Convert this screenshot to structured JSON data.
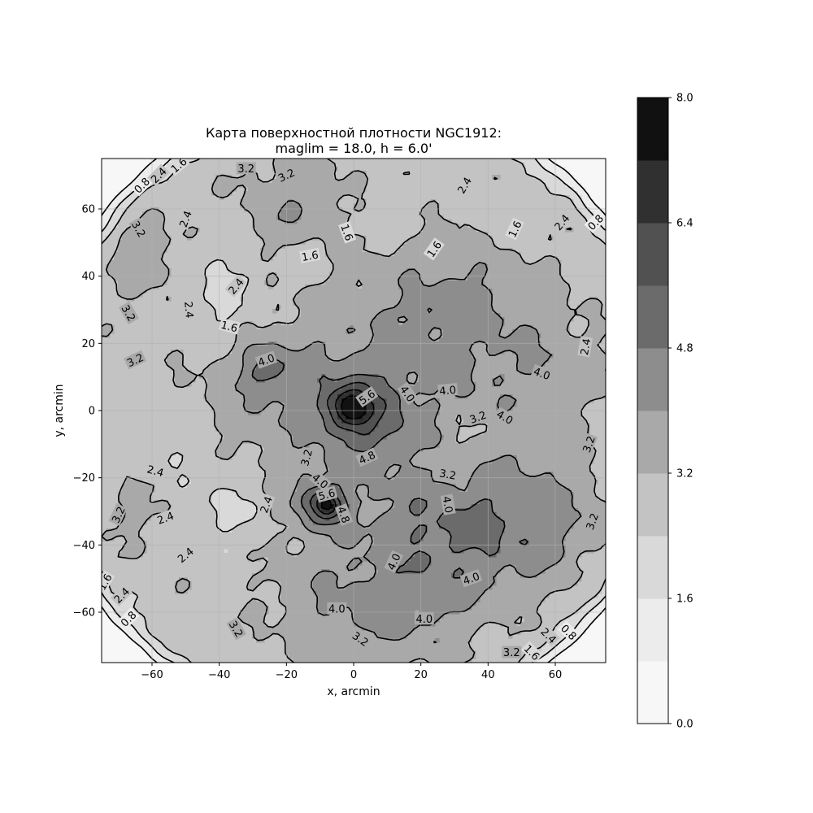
{
  "chart_data": {
    "type": "contour",
    "title_lines": [
      "Карта поверхностной плотности NGC1912:",
      "maglim = 18.0, h = 6.0'"
    ],
    "xlabel": "x, arcmin",
    "ylabel": "y, arcmin",
    "xlim": [
      -75,
      75
    ],
    "ylim": [
      -75,
      75
    ],
    "xticks": [
      -60,
      -40,
      -20,
      0,
      20,
      40,
      60
    ],
    "yticks": [
      -60,
      -40,
      -20,
      0,
      20,
      40,
      60
    ],
    "grid": true,
    "colormap": "Greys",
    "levels": [
      0.0,
      0.8,
      1.6,
      2.4,
      3.2,
      4.0,
      4.8,
      5.6,
      6.4,
      7.2,
      8.0
    ],
    "level_colors": [
      "#f7f7f7",
      "#ececec",
      "#d9d9d9",
      "#c3c3c3",
      "#a9a9a9",
      "#8d8d8d",
      "#6b6b6b",
      "#515151",
      "#303030",
      "#111111"
    ],
    "colorbar": {
      "min": 0.0,
      "max": 8.0,
      "ticks": [
        0.0,
        1.6,
        3.2,
        4.8,
        6.4,
        8.0
      ],
      "tick_labels": [
        "0.0",
        "1.6",
        "3.2",
        "4.8",
        "6.4",
        "8.0"
      ]
    },
    "contour_labels": [
      {
        "text": "0.8",
        "x": -63,
        "y": 67,
        "rot": -45
      },
      {
        "text": "2.4",
        "x": -58,
        "y": 70,
        "rot": -45
      },
      {
        "text": "1.6",
        "x": -52,
        "y": 73,
        "rot": -40
      },
      {
        "text": "3.2",
        "x": -32,
        "y": 72,
        "rot": 0
      },
      {
        "text": "3.2",
        "x": -20,
        "y": 70,
        "rot": -25
      },
      {
        "text": "2.4",
        "x": -50,
        "y": 57,
        "rot": -70
      },
      {
        "text": "3.2",
        "x": -64,
        "y": 54,
        "rot": 60
      },
      {
        "text": "2.4",
        "x": 33,
        "y": 67,
        "rot": -60
      },
      {
        "text": "1.6",
        "x": -2,
        "y": 53,
        "rot": 70
      },
      {
        "text": "1.6",
        "x": -13,
        "y": 46,
        "rot": -10
      },
      {
        "text": "1.6",
        "x": 24,
        "y": 48,
        "rot": -55
      },
      {
        "text": "1.6",
        "x": 48,
        "y": 54,
        "rot": -65
      },
      {
        "text": "2.4",
        "x": 62,
        "y": 56,
        "rot": -50
      },
      {
        "text": "0.8",
        "x": 72,
        "y": 56,
        "rot": -45
      },
      {
        "text": "2.4",
        "x": -35,
        "y": 37,
        "rot": -50
      },
      {
        "text": "3.2",
        "x": -67,
        "y": 29,
        "rot": 60
      },
      {
        "text": "2.4",
        "x": -49,
        "y": 30,
        "rot": 85
      },
      {
        "text": "1.6",
        "x": -37,
        "y": 25,
        "rot": 15
      },
      {
        "text": "3.2",
        "x": -65,
        "y": 15,
        "rot": -25
      },
      {
        "text": "4.0",
        "x": -26,
        "y": 15,
        "rot": -20
      },
      {
        "text": "2.4",
        "x": 69,
        "y": 19,
        "rot": -80
      },
      {
        "text": "4.0",
        "x": 56,
        "y": 11,
        "rot": 20
      },
      {
        "text": "5.6",
        "x": 4,
        "y": 4,
        "rot": -35
      },
      {
        "text": "4.0",
        "x": 16,
        "y": 5,
        "rot": 55
      },
      {
        "text": "4.0",
        "x": 28,
        "y": 6,
        "rot": -5
      },
      {
        "text": "3.2",
        "x": 37,
        "y": -2,
        "rot": -20
      },
      {
        "text": "4.0",
        "x": 45,
        "y": -2,
        "rot": 30
      },
      {
        "text": "3.2",
        "x": 70,
        "y": -10,
        "rot": -70
      },
      {
        "text": "3.2",
        "x": -14,
        "y": -14,
        "rot": -75
      },
      {
        "text": "4.8",
        "x": 4,
        "y": -14,
        "rot": -25
      },
      {
        "text": "2.4",
        "x": -59,
        "y": -18,
        "rot": 15
      },
      {
        "text": "3.2",
        "x": 28,
        "y": -19,
        "rot": 10
      },
      {
        "text": "4.0",
        "x": -10,
        "y": -21,
        "rot": 40
      },
      {
        "text": "5.6",
        "x": -8,
        "y": -25,
        "rot": -15
      },
      {
        "text": "2.4",
        "x": -26,
        "y": -28,
        "rot": -70
      },
      {
        "text": "4.0",
        "x": 28,
        "y": -28,
        "rot": 80
      },
      {
        "text": "4.8",
        "x": -3,
        "y": -31,
        "rot": 70
      },
      {
        "text": "3.2",
        "x": -70,
        "y": -31,
        "rot": -65
      },
      {
        "text": "2.4",
        "x": -56,
        "y": -32,
        "rot": -20
      },
      {
        "text": "3.2",
        "x": 71,
        "y": -33,
        "rot": -70
      },
      {
        "text": "2.4",
        "x": -50,
        "y": -43,
        "rot": -40
      },
      {
        "text": "4.0",
        "x": 12,
        "y": -45,
        "rot": -65
      },
      {
        "text": "4.0",
        "x": 35,
        "y": -50,
        "rot": -20
      },
      {
        "text": "1.6",
        "x": -74,
        "y": -51,
        "rot": -60
      },
      {
        "text": "2.4",
        "x": -69,
        "y": -55,
        "rot": -45
      },
      {
        "text": "0.8",
        "x": -67,
        "y": -62,
        "rot": -45
      },
      {
        "text": "4.0",
        "x": -5,
        "y": -59,
        "rot": 0
      },
      {
        "text": "4.0",
        "x": 21,
        "y": -62,
        "rot": 0
      },
      {
        "text": "3.2",
        "x": -35,
        "y": -65,
        "rot": 60
      },
      {
        "text": "3.2",
        "x": 2,
        "y": -68,
        "rot": 35
      },
      {
        "text": "3.2",
        "x": 47,
        "y": -72,
        "rot": 0
      },
      {
        "text": "1.6",
        "x": 53,
        "y": -72,
        "rot": 45
      },
      {
        "text": "2.4",
        "x": 58,
        "y": -67,
        "rot": 45
      },
      {
        "text": "0.8",
        "x": 64,
        "y": -66,
        "rot": 45
      }
    ]
  }
}
